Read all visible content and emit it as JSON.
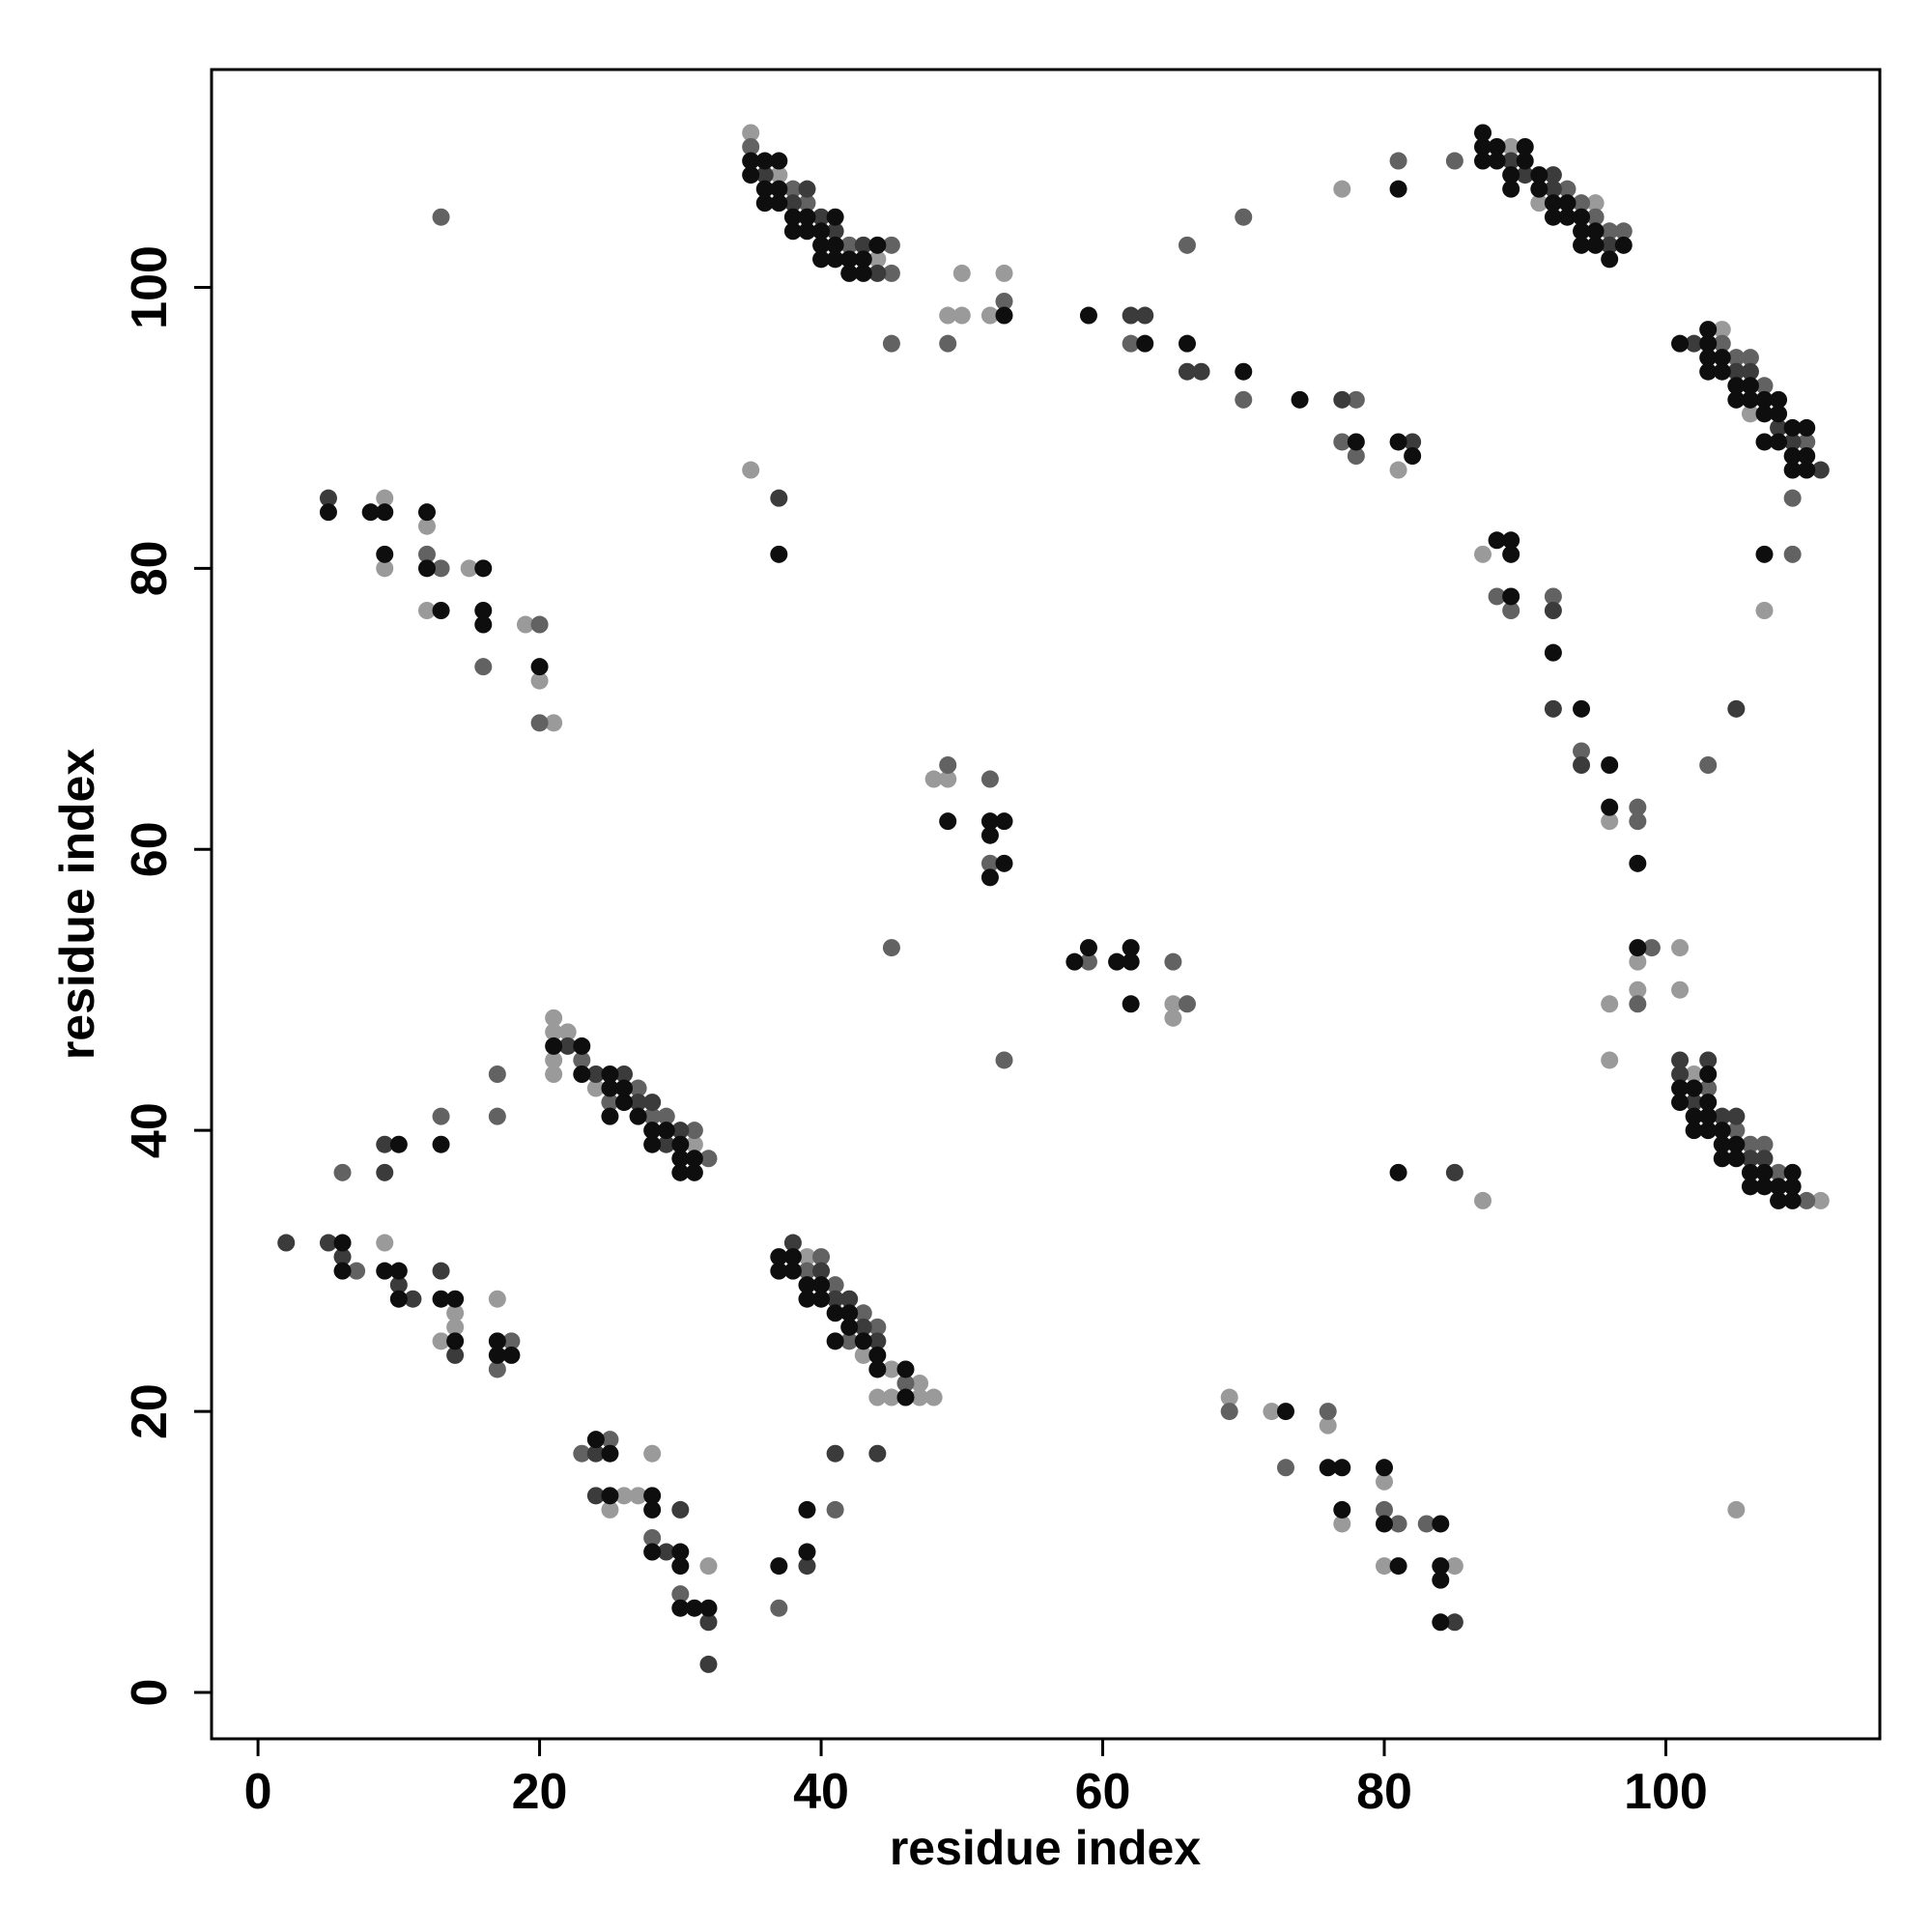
{
  "chart_data": {
    "type": "scatter",
    "x_label": "residue index",
    "y_label": "residue index",
    "xlim": [
      -3.3,
      115.2
    ],
    "ylim": [
      -3.3,
      115.5
    ],
    "xticks": [
      0,
      20,
      40,
      60,
      80,
      100
    ],
    "yticks": [
      0,
      20,
      40,
      60,
      80,
      100
    ],
    "grid": false,
    "series": [
      {
        "color": "#9a9a9a",
        "x": [
          9,
          12,
          9,
          15,
          12,
          19,
          20,
          21,
          9,
          14,
          14,
          13,
          17,
          21,
          21,
          22,
          21,
          21,
          24,
          31,
          25,
          26,
          27,
          28,
          32,
          39,
          43,
          44,
          45,
          45,
          47,
          47,
          48,
          35,
          37,
          44,
          35,
          49,
          50,
          50,
          52,
          53,
          77,
          81,
          48,
          49,
          65,
          65,
          69,
          72,
          76,
          77,
          80,
          80,
          85,
          87,
          89,
          91,
          95,
          104,
          106,
          107,
          87,
          96,
          98,
          98,
          96,
          96,
          101,
          101,
          105,
          102,
          111
        ],
        "y": [
          85,
          83,
          80,
          80,
          77,
          76,
          72,
          69,
          32,
          27,
          26,
          25,
          28,
          48,
          47,
          47,
          45,
          44,
          43,
          39,
          13,
          14,
          14,
          17,
          9,
          31,
          24,
          21,
          23,
          21,
          22,
          21,
          21,
          111,
          108,
          102,
          87,
          98,
          101,
          98,
          98,
          101,
          107,
          87,
          65,
          65,
          49,
          48,
          21,
          20,
          19,
          12,
          15,
          9,
          9,
          35,
          110,
          106,
          106,
          97,
          91,
          77,
          81,
          62,
          52,
          50,
          49,
          45,
          53,
          50,
          13,
          44,
          35
        ]
      },
      {
        "color": "#626262",
        "x": [
          12,
          13,
          16,
          20,
          20,
          13,
          7,
          18,
          17,
          6,
          13,
          17,
          17,
          23,
          25,
          27,
          28,
          29,
          32,
          31,
          23,
          25,
          28,
          30,
          37,
          41,
          39,
          40,
          41,
          42,
          43,
          44,
          46,
          35,
          38,
          39,
          42,
          45,
          45,
          45,
          49,
          53,
          62,
          66,
          70,
          70,
          78,
          77,
          78,
          81,
          85,
          49,
          52,
          52,
          45,
          53,
          59,
          65,
          66,
          69,
          73,
          76,
          80,
          81,
          83,
          93,
          94,
          95,
          96,
          97,
          104,
          105,
          106,
          107,
          110,
          109,
          109,
          88,
          89,
          92,
          94,
          98,
          98,
          99,
          98,
          103,
          103,
          105,
          106,
          107,
          108,
          110
        ],
        "y": [
          81,
          80,
          73,
          76,
          69,
          105,
          30,
          25,
          23,
          37,
          41,
          44,
          41,
          45,
          42,
          43,
          41,
          41,
          38,
          40,
          17,
          18,
          11,
          7,
          6,
          13,
          30,
          31,
          29,
          25,
          27,
          26,
          22,
          110,
          107,
          106,
          103,
          103,
          101,
          96,
          96,
          99,
          96,
          103,
          105,
          92,
          92,
          89,
          88,
          109,
          109,
          66,
          65,
          59,
          53,
          45,
          52,
          52,
          49,
          20,
          16,
          20,
          13,
          12,
          12,
          107,
          106,
          105,
          104,
          104,
          96,
          95,
          95,
          93,
          89,
          85,
          81,
          78,
          77,
          78,
          67,
          63,
          62,
          53,
          49,
          66,
          43,
          40,
          39,
          39,
          37,
          35
        ]
      },
      {
        "color": "#3b3b3b",
        "x": [
          5,
          2,
          5,
          6,
          10,
          11,
          13,
          14,
          9,
          9,
          22,
          24,
          26,
          27,
          28,
          29,
          30,
          24,
          24,
          29,
          30,
          32,
          32,
          39,
          41,
          44,
          38,
          40,
          41,
          42,
          43,
          44,
          36,
          38,
          39,
          40,
          41,
          43,
          44,
          37,
          62,
          63,
          66,
          67,
          77,
          82,
          85,
          85,
          89,
          90,
          92,
          92,
          96,
          102,
          105,
          106,
          108,
          109,
          111,
          92,
          92,
          94,
          105,
          101,
          101,
          102,
          103,
          104,
          105,
          106,
          107
        ],
        "y": [
          85,
          32,
          32,
          31,
          29,
          28,
          30,
          24,
          39,
          37,
          46,
          44,
          44,
          42,
          42,
          39,
          40,
          17,
          14,
          10,
          13,
          5,
          2,
          9,
          17,
          17,
          32,
          30,
          28,
          28,
          26,
          25,
          108,
          106,
          107,
          105,
          104,
          103,
          101,
          85,
          98,
          98,
          94,
          94,
          92,
          89,
          5,
          37,
          109,
          108,
          108,
          107,
          103,
          96,
          94,
          94,
          90,
          89,
          87,
          77,
          70,
          66,
          70,
          45,
          44,
          42,
          45,
          41,
          41,
          38,
          38
        ]
      },
      {
        "color": "#0e0e0e",
        "x": [
          5,
          8,
          9,
          12,
          9,
          12,
          16,
          13,
          16,
          16,
          20,
          6,
          6,
          9,
          10,
          10,
          13,
          14,
          14,
          17,
          17,
          18,
          10,
          13,
          21,
          23,
          23,
          25,
          25,
          26,
          26,
          25,
          27,
          28,
          28,
          29,
          30,
          30,
          30,
          31,
          31,
          24,
          25,
          25,
          28,
          28,
          28,
          30,
          30,
          30,
          31,
          32,
          37,
          39,
          39,
          37,
          37,
          38,
          38,
          39,
          39,
          40,
          40,
          41,
          41,
          42,
          42,
          43,
          44,
          44,
          46,
          46,
          35,
          35,
          36,
          36,
          36,
          37,
          37,
          37,
          38,
          38,
          39,
          39,
          40,
          40,
          40,
          41,
          41,
          41,
          42,
          42,
          43,
          43,
          44,
          37,
          53,
          59,
          63,
          66,
          70,
          74,
          78,
          81,
          81,
          82,
          49,
          52,
          53,
          52,
          53,
          52,
          58,
          59,
          61,
          62,
          62,
          62,
          73,
          76,
          77,
          77,
          80,
          80,
          81,
          84,
          84,
          84,
          84,
          81,
          87,
          87,
          87,
          88,
          88,
          89,
          89,
          90,
          90,
          91,
          91,
          92,
          92,
          93,
          93,
          94,
          94,
          94,
          95,
          95,
          96,
          97,
          101,
          103,
          103,
          103,
          103,
          104,
          104,
          105,
          105,
          106,
          106,
          107,
          107,
          107,
          108,
          108,
          108,
          109,
          109,
          109,
          110,
          110,
          110,
          107,
          88,
          89,
          89,
          89,
          92,
          94,
          96,
          96,
          98,
          98,
          101,
          101,
          102,
          102,
          102,
          103,
          103,
          103,
          103,
          104,
          104,
          104,
          105,
          105,
          106,
          106,
          107,
          107,
          108,
          108,
          109,
          109,
          109
        ],
        "y": [
          84,
          84,
          84,
          84,
          81,
          80,
          80,
          77,
          77,
          76,
          73,
          32,
          30,
          30,
          30,
          28,
          28,
          28,
          25,
          25,
          24,
          24,
          39,
          39,
          46,
          46,
          44,
          44,
          43,
          43,
          42,
          41,
          41,
          40,
          39,
          40,
          39,
          38,
          37,
          38,
          37,
          18,
          17,
          14,
          14,
          13,
          10,
          10,
          9,
          6,
          6,
          6,
          9,
          13,
          10,
          31,
          30,
          31,
          30,
          29,
          28,
          29,
          28,
          27,
          25,
          27,
          26,
          25,
          24,
          23,
          23,
          21,
          109,
          108,
          109,
          107,
          106,
          109,
          107,
          106,
          105,
          104,
          105,
          104,
          104,
          103,
          102,
          105,
          103,
          102,
          102,
          101,
          102,
          101,
          103,
          81,
          98,
          98,
          96,
          96,
          94,
          92,
          89,
          107,
          89,
          88,
          62,
          62,
          62,
          61,
          59,
          58,
          52,
          53,
          52,
          53,
          52,
          49,
          20,
          16,
          16,
          13,
          16,
          12,
          9,
          12,
          9,
          8,
          5,
          37,
          111,
          110,
          109,
          110,
          109,
          108,
          107,
          110,
          109,
          108,
          107,
          106,
          105,
          106,
          105,
          105,
          104,
          103,
          104,
          103,
          102,
          103,
          96,
          97,
          96,
          95,
          94,
          95,
          94,
          93,
          92,
          93,
          92,
          92,
          91,
          89,
          92,
          91,
          89,
          90,
          88,
          87,
          90,
          88,
          87,
          81,
          82,
          82,
          81,
          78,
          74,
          70,
          66,
          63,
          59,
          53,
          43,
          42,
          43,
          41,
          40,
          44,
          42,
          41,
          40,
          40,
          39,
          38,
          39,
          38,
          37,
          36,
          37,
          36,
          36,
          35,
          37,
          36,
          35
        ]
      }
    ]
  }
}
